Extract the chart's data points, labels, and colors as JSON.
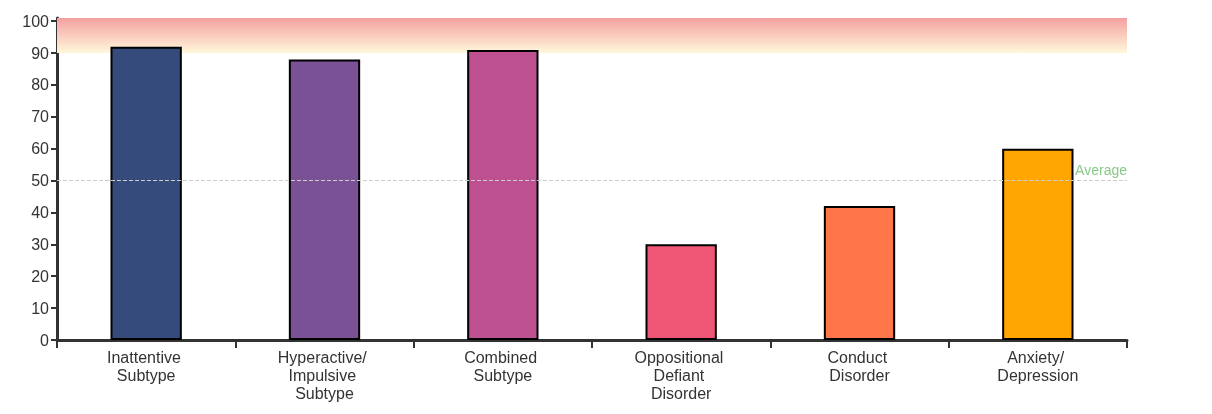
{
  "chart_data": {
    "type": "bar",
    "categories": [
      "Inattentive Subtype",
      "Hyperactive/ Impulsive Subtype",
      "Combined Subtype",
      "Oppositional Defiant Disorder",
      "Conduct Disorder",
      "Anxiety/ Depression"
    ],
    "values": [
      92,
      88,
      91,
      30,
      42,
      60
    ],
    "colors": [
      "#354b7c",
      "#7a5195",
      "#bc5090",
      "#ef5675",
      "#ff764a",
      "#ffa600"
    ],
    "ylim": [
      0,
      101
    ],
    "yticks": [
      0,
      10,
      20,
      30,
      40,
      50,
      60,
      70,
      80,
      90,
      100
    ],
    "grid": false,
    "ref_lines": [
      {
        "axis": "y",
        "value": 50,
        "label": "Average",
        "color": "#cccccc",
        "line_style": "dashed"
      }
    ],
    "bands": [
      {
        "axis": "y",
        "from": 90,
        "to": 101,
        "color": "#f4a0a0"
      }
    ]
  }
}
